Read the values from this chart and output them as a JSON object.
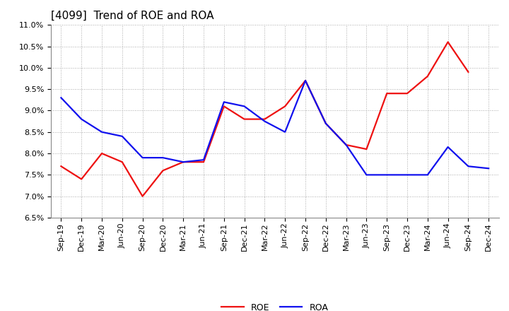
{
  "title": "[4099]  Trend of ROE and ROA",
  "labels": [
    "Sep-19",
    "Dec-19",
    "Mar-20",
    "Jun-20",
    "Sep-20",
    "Dec-20",
    "Mar-21",
    "Jun-21",
    "Sep-21",
    "Dec-21",
    "Mar-22",
    "Jun-22",
    "Sep-22",
    "Dec-22",
    "Mar-23",
    "Jun-23",
    "Sep-23",
    "Dec-23",
    "Mar-24",
    "Jun-24",
    "Sep-24",
    "Dec-24"
  ],
  "ROE": [
    7.7,
    7.4,
    8.0,
    7.8,
    7.0,
    7.6,
    7.8,
    7.8,
    9.1,
    8.8,
    8.8,
    9.1,
    9.7,
    8.7,
    8.2,
    8.1,
    9.4,
    9.4,
    9.8,
    10.6,
    9.9,
    null
  ],
  "ROA": [
    9.3,
    8.8,
    8.5,
    8.4,
    7.9,
    7.9,
    7.8,
    7.85,
    9.2,
    9.1,
    8.75,
    8.5,
    9.7,
    8.7,
    8.2,
    7.5,
    7.5,
    7.5,
    7.5,
    8.15,
    7.7,
    7.65
  ],
  "roe_color": "#EE1111",
  "roa_color": "#1111EE",
  "ylim_min": 6.5,
  "ylim_max": 11.0,
  "yticks": [
    6.5,
    7.0,
    7.5,
    8.0,
    8.5,
    9.0,
    9.5,
    10.0,
    10.5,
    11.0
  ],
  "bg_color": "#FFFFFF",
  "grid_color": "#AAAAAA",
  "title_fontsize": 11,
  "axis_fontsize": 8,
  "legend_fontsize": 9,
  "line_width": 1.6
}
